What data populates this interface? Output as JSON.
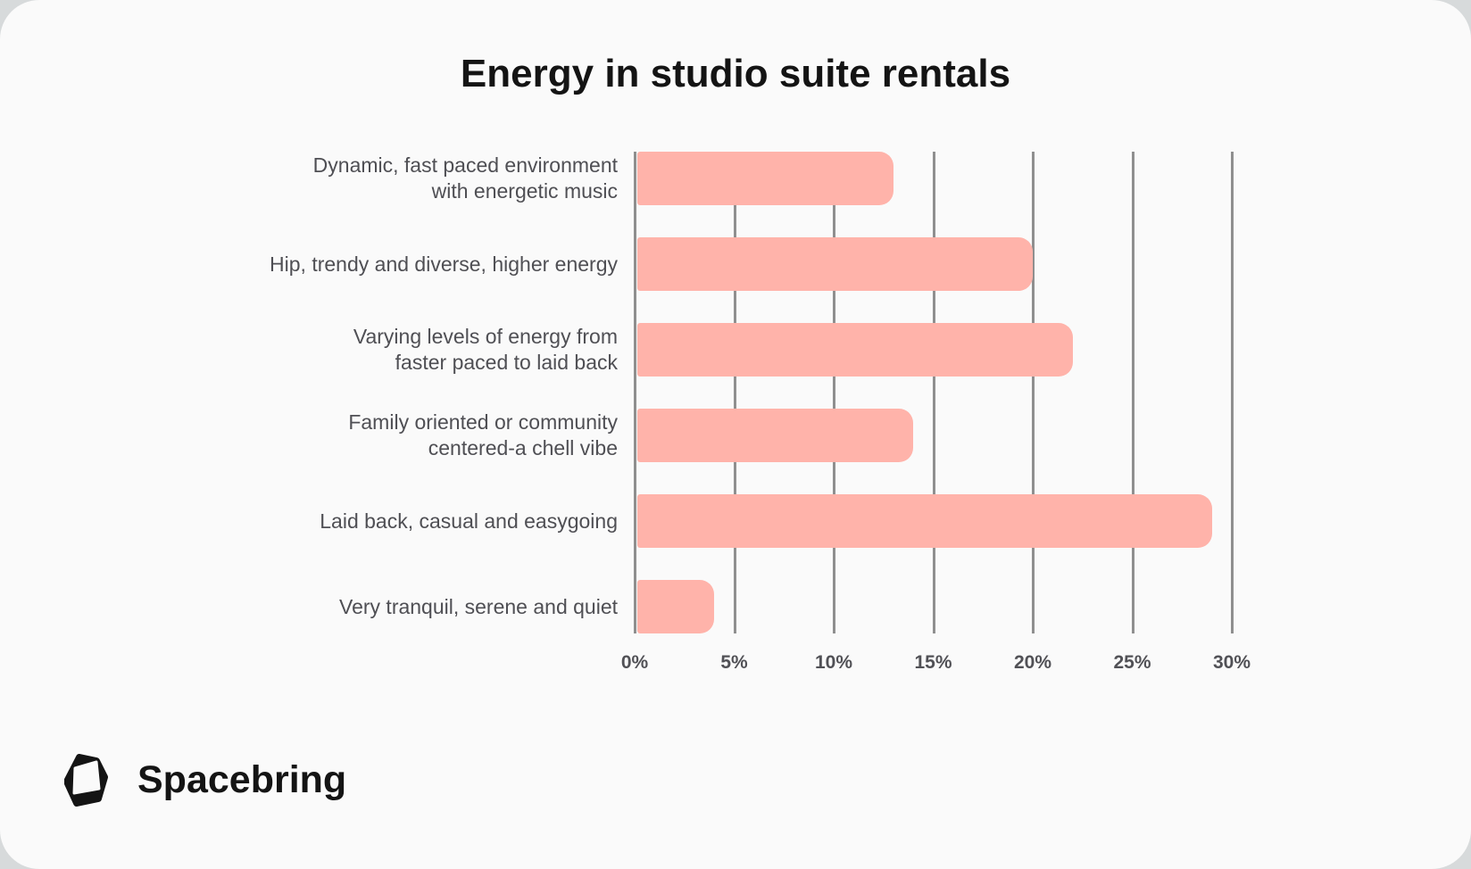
{
  "page": {
    "outer_background": "#D7DADB",
    "card_background": "#FAFAFA"
  },
  "title": "Energy in studio suite rentals",
  "chart_data": {
    "type": "bar",
    "orientation": "horizontal",
    "title": "Energy in studio suite rentals",
    "categories": [
      "Dynamic, fast paced environment\nwith energetic music",
      "Hip, trendy and diverse, higher energy",
      "Varying levels of energy from\nfaster paced to laid back",
      "Family oriented or community\ncentered-a chell vibe",
      "Laid back, casual and easygoing",
      "Very tranquil, serene and quiet"
    ],
    "values": [
      13,
      20,
      22,
      14,
      29,
      4
    ],
    "value_unit": "%",
    "xlabel": "",
    "ylabel": "",
    "xlim": [
      0,
      30
    ],
    "x_ticks": [
      "0%",
      "5%",
      "10%",
      "15%",
      "20%",
      "25%",
      "30%"
    ],
    "grid": "vertical-only",
    "legend": "none",
    "bar_color": "#FFB3AA",
    "gridline_color": "#8F8F8F",
    "label_color": "#4F4F54",
    "tick_color": "#515156"
  },
  "footer": {
    "brand": "Spacebring",
    "logo_icon": "spacebring-cube-logo"
  }
}
